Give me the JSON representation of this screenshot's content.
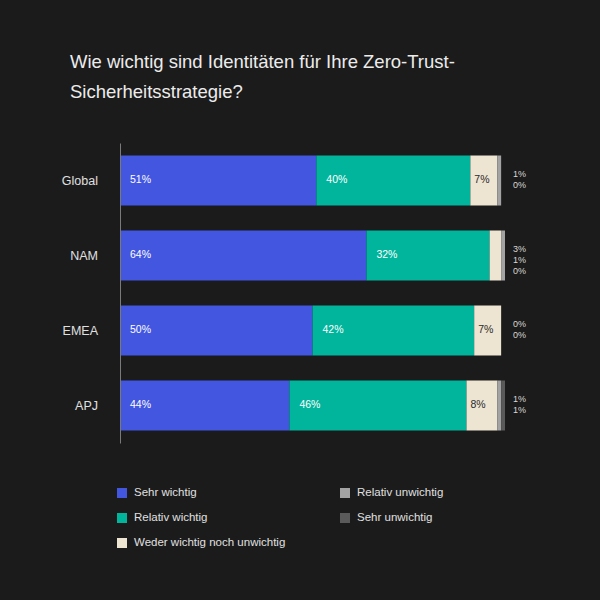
{
  "chart_data": {
    "type": "bar",
    "orientation": "horizontal",
    "stacked": true,
    "data_labels": true,
    "tick_labels": "y",
    "legend": "bottom",
    "title": "Wie wichtig sind Identitäten für Ihre Zero-Trust-Sicherheitsstrategie?",
    "categories": [
      "Global",
      "NAM",
      "EMEA",
      "APJ"
    ],
    "xlim": [
      0,
      100
    ],
    "series": [
      {
        "name": "Sehr wichtig",
        "color": "#4356e0",
        "values": [
          51,
          64,
          50,
          44
        ],
        "value_labels": [
          "51%",
          "64%",
          "50%",
          "44%"
        ]
      },
      {
        "name": "Relativ wichtig",
        "color": "#00b59c",
        "values": [
          40,
          32,
          42,
          46
        ],
        "value_labels": [
          "40%",
          "32%",
          "42%",
          "46%"
        ]
      },
      {
        "name": "Weder wichtig noch unwichtig",
        "color": "#eee4d2",
        "values": [
          7,
          3,
          7,
          8
        ],
        "value_labels": [
          "7%",
          "3%",
          "7%",
          "8%"
        ]
      },
      {
        "name": "Relativ unwichtig",
        "color": "#a3a3a3",
        "values": [
          1,
          1,
          0,
          1
        ],
        "value_labels": [
          "1%",
          "1%",
          "0%",
          "1%"
        ]
      },
      {
        "name": "Sehr unwichtig",
        "color": "#5a5a5a",
        "values": [
          0,
          0,
          0,
          1
        ],
        "value_labels": [
          "0%",
          "0%",
          "0%",
          "1%"
        ]
      }
    ]
  }
}
